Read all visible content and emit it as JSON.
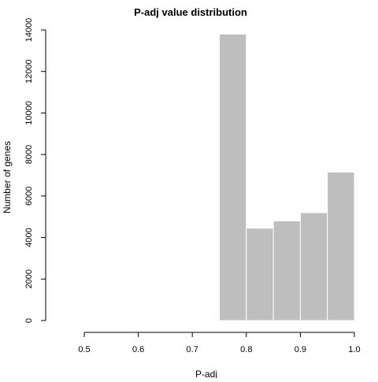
{
  "chart_data": {
    "type": "bar",
    "title": "P-adj value distribution",
    "xlabel": "P-adj",
    "ylabel": "Number of genes",
    "xlim": [
      0.5,
      1.0
    ],
    "ylim": [
      0,
      14000
    ],
    "x_ticks": [
      "0.5",
      "0.6",
      "0.7",
      "0.8",
      "0.9",
      "1.0"
    ],
    "y_ticks": [
      "0",
      "2000",
      "4000",
      "6000",
      "8000",
      "10000",
      "12000",
      "14000"
    ],
    "bins": [
      {
        "start": 0.75,
        "end": 0.8,
        "value": 13800
      },
      {
        "start": 0.8,
        "end": 0.85,
        "value": 4450
      },
      {
        "start": 0.85,
        "end": 0.9,
        "value": 4800
      },
      {
        "start": 0.9,
        "end": 0.95,
        "value": 5200
      },
      {
        "start": 0.95,
        "end": 1.0,
        "value": 7150
      }
    ],
    "bar_color": "#bebebe",
    "bar_edge_color": "#ffffff",
    "grid": false
  }
}
